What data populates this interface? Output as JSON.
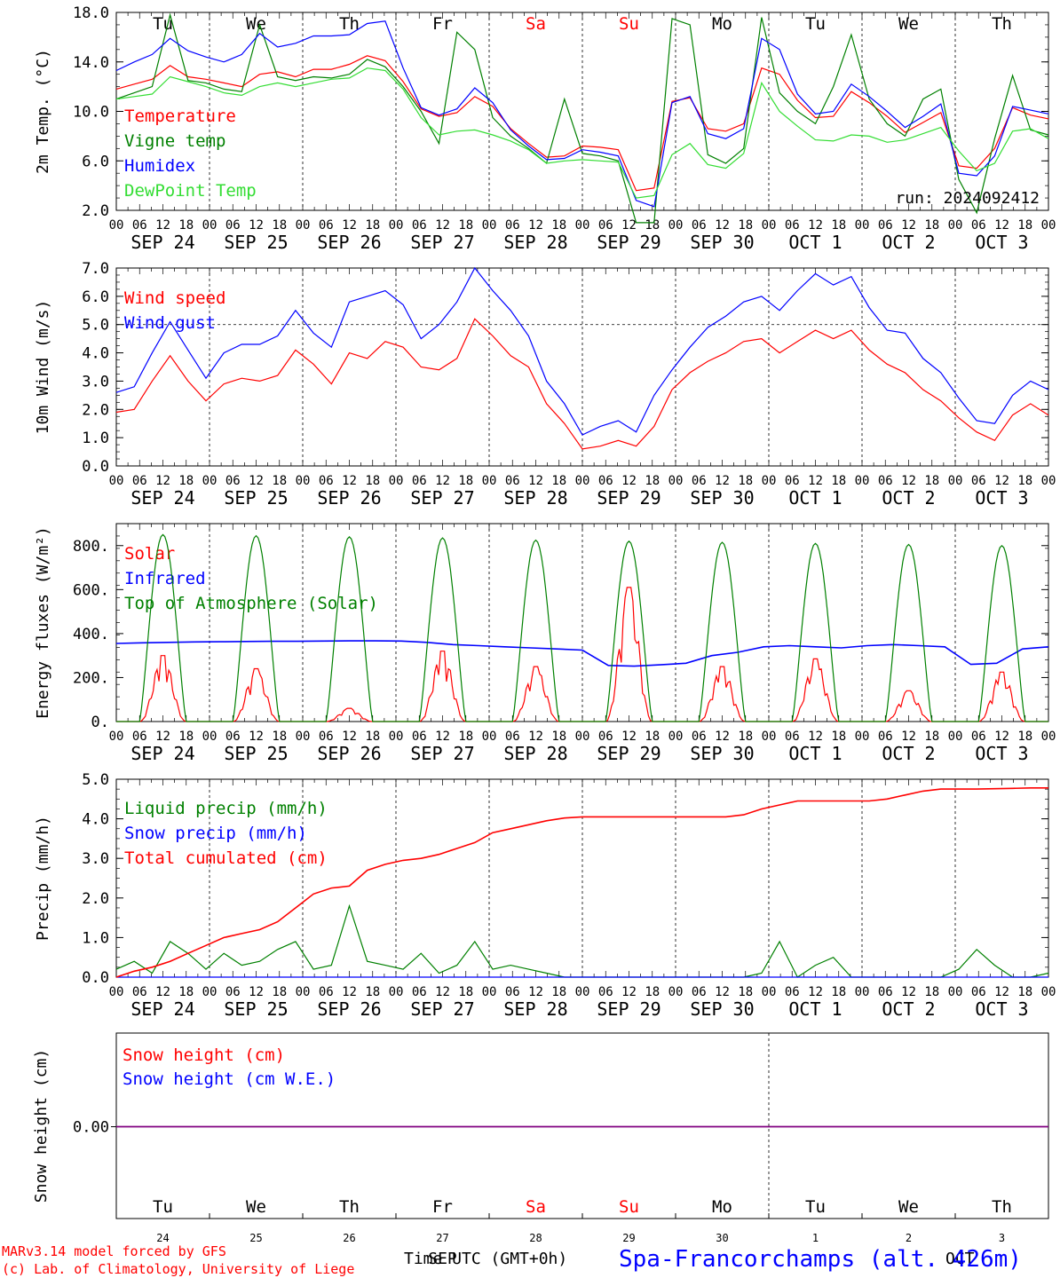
{
  "colors": {
    "red": "#ff0000",
    "green": "#008000",
    "blue": "#0000ff",
    "lightgreen": "#33dd33",
    "purple": "#800080"
  },
  "axis_common": {
    "hour_ticks": [
      "00",
      "06",
      "12",
      "18"
    ],
    "dates": [
      "SEP 24",
      "SEP 25",
      "SEP 26",
      "SEP 27",
      "SEP 28",
      "SEP 29",
      "SEP 30",
      "OCT  1",
      "OCT  2",
      "OCT  3"
    ],
    "days": [
      "Tu",
      "We",
      "Th",
      "Fr",
      "Sa",
      "Su",
      "Mo",
      "Tu",
      "We",
      "Th"
    ],
    "weekend_days": [
      "Sa",
      "Su"
    ]
  },
  "chart_data": [
    {
      "type": "line",
      "ylabel": "2m Temp. (°C)",
      "ylim": [
        2,
        18
      ],
      "yticks": [
        "2.0",
        "6.0",
        "10.0",
        "14.0",
        "18.0"
      ],
      "annotation": "run: 2024092412",
      "series": [
        {
          "name": "Temperature",
          "color": "red",
          "values": [
            11.8,
            12.2,
            12.6,
            13.7,
            12.8,
            12.6,
            12.3,
            12.0,
            13.0,
            13.2,
            12.8,
            13.4,
            13.4,
            13.8,
            14.5,
            14.1,
            12.4,
            10.2,
            9.6,
            9.9,
            11.2,
            10.4,
            8.6,
            7.4,
            6.3,
            6.4,
            7.2,
            7.1,
            6.9,
            3.6,
            3.8,
            10.8,
            11.1,
            8.6,
            8.4,
            9.0,
            13.5,
            13.0,
            10.9,
            9.5,
            9.6,
            11.6,
            10.7,
            9.6,
            8.3,
            9.1,
            9.9,
            5.6,
            5.4,
            7.0,
            10.3,
            9.7,
            9.4
          ]
        },
        {
          "name": "Vigne temp",
          "color": "green",
          "values": [
            11.0,
            11.5,
            12.0,
            17.8,
            12.5,
            12.3,
            11.8,
            11.6,
            17.0,
            12.8,
            12.5,
            12.8,
            12.7,
            13.0,
            14.2,
            13.6,
            12.0,
            10.0,
            7.4,
            16.4,
            15.0,
            9.5,
            8.0,
            7.0,
            5.8,
            11.0,
            6.6,
            6.4,
            6.0,
            0.5,
            1.0,
            17.5,
            17.0,
            6.5,
            5.8,
            7.0,
            17.6,
            11.5,
            10.0,
            9.0,
            12.0,
            16.2,
            11.0,
            9.0,
            8.0,
            11.0,
            11.8,
            4.5,
            1.8,
            7.8,
            12.9,
            8.5,
            8.1
          ]
        },
        {
          "name": "Humidex",
          "color": "blue",
          "values": [
            13.3,
            14.0,
            14.6,
            15.9,
            14.9,
            14.4,
            14.0,
            14.6,
            16.3,
            15.2,
            15.5,
            16.1,
            16.1,
            16.2,
            17.1,
            17.3,
            13.5,
            10.3,
            9.7,
            10.2,
            11.9,
            10.7,
            8.5,
            7.2,
            6.1,
            6.2,
            6.9,
            6.7,
            6.4,
            2.8,
            2.3,
            10.7,
            11.2,
            8.2,
            7.8,
            8.6,
            15.9,
            15.0,
            11.4,
            9.8,
            10.0,
            12.2,
            11.2,
            10.0,
            8.7,
            9.6,
            10.6,
            5.0,
            4.8,
            6.4,
            10.4,
            10.1,
            9.8
          ]
        },
        {
          "name": "DewPoint Temp",
          "color": "lightgreen",
          "values": [
            11.0,
            11.2,
            11.4,
            12.8,
            12.4,
            12.0,
            11.5,
            11.3,
            12.0,
            12.3,
            12.0,
            12.3,
            12.6,
            12.7,
            13.5,
            13.3,
            11.8,
            9.5,
            8.1,
            8.4,
            8.5,
            8.1,
            7.6,
            6.9,
            5.8,
            6.0,
            6.1,
            6.0,
            5.9,
            3.0,
            3.2,
            6.5,
            7.4,
            5.7,
            5.4,
            6.6,
            12.3,
            10.0,
            8.8,
            7.7,
            7.6,
            8.1,
            8.0,
            7.5,
            7.7,
            8.2,
            8.7,
            6.8,
            5.2,
            5.8,
            8.4,
            8.6,
            7.8
          ]
        }
      ]
    },
    {
      "type": "line",
      "ylabel": "10m Wind (m/s)",
      "ylim": [
        0,
        7
      ],
      "yticks": [
        "0.0",
        "1.0",
        "2.0",
        "3.0",
        "4.0",
        "5.0",
        "6.0",
        "7.0"
      ],
      "series": [
        {
          "name": "Wind speed",
          "color": "red",
          "values": [
            1.9,
            2.0,
            3.0,
            3.9,
            3.0,
            2.3,
            2.9,
            3.1,
            3.0,
            3.2,
            4.1,
            3.6,
            2.9,
            4.0,
            3.8,
            4.4,
            4.2,
            3.5,
            3.4,
            3.8,
            5.2,
            4.6,
            3.9,
            3.5,
            2.2,
            1.5,
            0.6,
            0.7,
            0.9,
            0.7,
            1.4,
            2.7,
            3.3,
            3.7,
            4.0,
            4.4,
            4.5,
            4.0,
            4.4,
            4.8,
            4.5,
            4.8,
            4.1,
            3.6,
            3.3,
            2.7,
            2.3,
            1.7,
            1.2,
            0.9,
            1.8,
            2.2,
            1.8
          ]
        },
        {
          "name": "Wind gust",
          "color": "blue",
          "values": [
            2.6,
            2.8,
            4.0,
            5.1,
            4.1,
            3.1,
            4.0,
            4.3,
            4.3,
            4.6,
            5.5,
            4.7,
            4.2,
            5.8,
            6.0,
            6.2,
            5.7,
            4.5,
            5.0,
            5.8,
            7.0,
            6.2,
            5.5,
            4.6,
            3.0,
            2.2,
            1.1,
            1.4,
            1.6,
            1.2,
            2.5,
            3.4,
            4.2,
            4.9,
            5.3,
            5.8,
            6.0,
            5.5,
            6.2,
            6.8,
            6.4,
            6.7,
            5.6,
            4.8,
            4.7,
            3.8,
            3.3,
            2.4,
            1.6,
            1.5,
            2.5,
            3.0,
            2.7
          ]
        }
      ]
    },
    {
      "type": "line",
      "ylabel": "Energy fluxes (W/m²)",
      "ylim": [
        0,
        900
      ],
      "yticks": [
        "0.",
        "200.",
        "400.",
        "600.",
        "800."
      ],
      "series": [
        {
          "name": "Solar",
          "color": "red",
          "daily_peak": [
            300,
            240,
            60,
            320,
            250,
            610,
            250,
            285,
            140,
            225
          ]
        },
        {
          "name": "Infrared",
          "color": "blue",
          "values": [
            355,
            358,
            360,
            362,
            363,
            364,
            365,
            365,
            366,
            367,
            367,
            366,
            360,
            350,
            345,
            340,
            335,
            330,
            325,
            255,
            252,
            258,
            265,
            300,
            315,
            340,
            345,
            340,
            335,
            345,
            350,
            345,
            340,
            260,
            265,
            330,
            340
          ]
        },
        {
          "name": "Top of Atmosphere (Solar)",
          "color": "green",
          "daily_peak": [
            850,
            845,
            840,
            835,
            825,
            820,
            815,
            810,
            805,
            800
          ]
        }
      ]
    },
    {
      "type": "line",
      "ylabel": "Precip (mm/h)",
      "ylim": [
        0,
        5
      ],
      "yticks": [
        "0.0",
        "1.0",
        "2.0",
        "3.0",
        "4.0",
        "5.0"
      ],
      "series": [
        {
          "name": "Liquid precip (mm/h)",
          "color": "green",
          "values": [
            0.2,
            0.4,
            0.1,
            0.9,
            0.6,
            0.2,
            0.6,
            0.3,
            0.4,
            0.7,
            0.9,
            0.2,
            0.3,
            1.8,
            0.4,
            0.3,
            0.2,
            0.6,
            0.1,
            0.3,
            0.9,
            0.2,
            0.3,
            0.2,
            0.1,
            0.0,
            0.0,
            0.0,
            0.0,
            0.0,
            0.0,
            0.0,
            0.0,
            0.0,
            0.0,
            0.0,
            0.1,
            0.9,
            0.0,
            0.3,
            0.5,
            0.0,
            0.0,
            0.0,
            0.0,
            0.0,
            0.0,
            0.2,
            0.7,
            0.3,
            0.0,
            0.0,
            0.1
          ]
        },
        {
          "name": "Snow precip (mm/h)",
          "color": "blue",
          "values": [
            0,
            0,
            0,
            0,
            0,
            0,
            0,
            0,
            0,
            0,
            0,
            0,
            0,
            0,
            0,
            0,
            0,
            0,
            0,
            0,
            0,
            0,
            0,
            0,
            0,
            0,
            0,
            0,
            0,
            0,
            0,
            0,
            0,
            0,
            0,
            0,
            0,
            0,
            0,
            0,
            0,
            0,
            0,
            0,
            0,
            0,
            0,
            0,
            0,
            0,
            0,
            0,
            0
          ]
        },
        {
          "name": "Total cumulated (cm)",
          "color": "red",
          "values": [
            0.0,
            0.15,
            0.25,
            0.4,
            0.6,
            0.8,
            1.0,
            1.1,
            1.2,
            1.4,
            1.75,
            2.1,
            2.25,
            2.3,
            2.7,
            2.85,
            2.95,
            3.0,
            3.1,
            3.25,
            3.4,
            3.65,
            3.75,
            3.85,
            3.95,
            4.02,
            4.05,
            4.05,
            4.05,
            4.05,
            4.05,
            4.05,
            4.05,
            4.05,
            4.05,
            4.1,
            4.25,
            4.35,
            4.45,
            4.45,
            4.45,
            4.45,
            4.45,
            4.5,
            4.6,
            4.7,
            4.75,
            4.75,
            4.75,
            4.76,
            4.77,
            4.78,
            4.78
          ]
        }
      ]
    },
    {
      "type": "line",
      "ylabel": "Snow height (cm)",
      "yticks": [
        "0.00"
      ],
      "xlabel": "Time UTC (GMT+0h)",
      "month_labels": [
        "SEP",
        "OCT"
      ],
      "day_numbers": [
        "24",
        "25",
        "26",
        "27",
        "28",
        "29",
        "30",
        "1",
        "2",
        "3"
      ],
      "series": [
        {
          "name": "Snow height (cm)",
          "color": "red",
          "values": [
            0,
            0
          ]
        },
        {
          "name": "Snow height (cm W.E.)",
          "color": "blue",
          "values": [
            0,
            0
          ]
        }
      ]
    }
  ],
  "footer": {
    "credit_line1": "MARv3.14 model forced by GFS",
    "credit_line2": "(c) Lab. of Climatology, University of Liege",
    "location": "Spa-Francorchamps (alt. 426m)"
  }
}
